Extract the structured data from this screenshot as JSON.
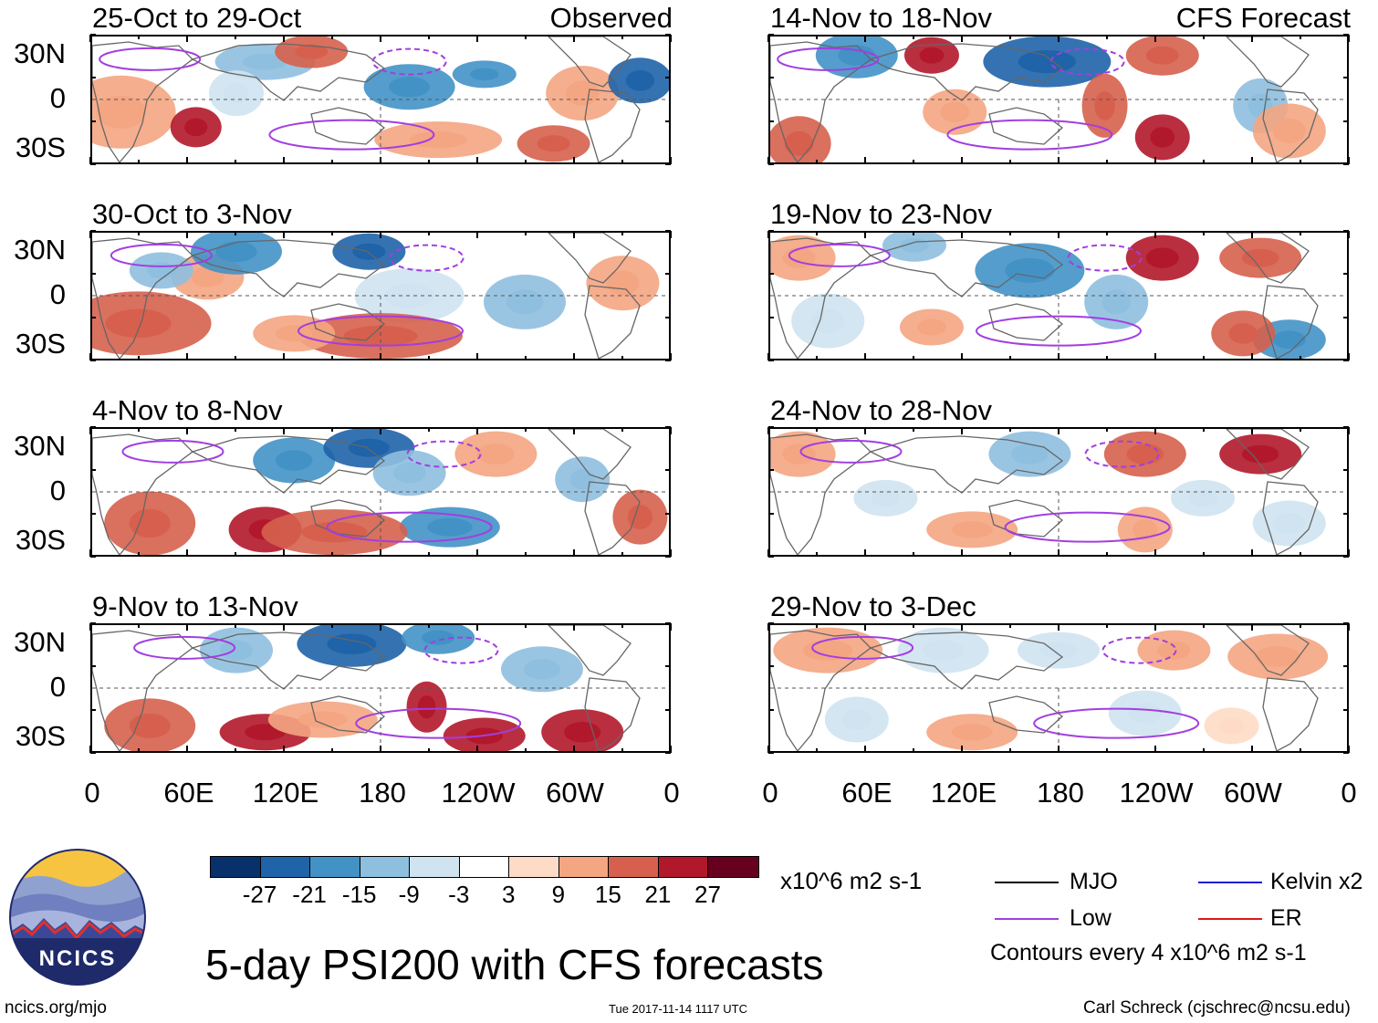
{
  "title": "5-day PSI200 with CFS forecasts",
  "observed_label": "Observed",
  "forecast_label": "CFS Forecast",
  "observed_periods": [
    "25-Oct to 29-Oct",
    "30-Oct to 3-Nov",
    "4-Nov to 8-Nov",
    "9-Nov to 13-Nov"
  ],
  "forecast_periods": [
    "14-Nov to 18-Nov",
    "19-Nov to 23-Nov",
    "24-Nov to 28-Nov",
    "29-Nov to 3-Dec"
  ],
  "lat_labels": [
    "30N",
    "0",
    "30S"
  ],
  "lon_labels": [
    "0",
    "60E",
    "120E",
    "180",
    "120W",
    "60W",
    "0"
  ],
  "colorbar": {
    "values": [
      -27,
      -21,
      -15,
      -9,
      -3,
      3,
      9,
      15,
      21,
      27
    ],
    "labels": [
      "-27",
      "-21",
      "-15",
      "-9",
      "-3",
      "3",
      "9",
      "15",
      "21",
      "27"
    ],
    "colors": [
      "#08306b",
      "#1f63a8",
      "#4292c6",
      "#8fbfdf",
      "#cfe3f0",
      "#ffffff",
      "#fddbc7",
      "#f4a582",
      "#d6604d",
      "#b2182b",
      "#67001f"
    ],
    "units": "x10^6 m2 s-1"
  },
  "legend": {
    "items": [
      {
        "label": "MJO",
        "color": "#000000"
      },
      {
        "label": "Kelvin x2",
        "color": "#1a1adb"
      },
      {
        "label": "Low",
        "color": "#a23ee0"
      },
      {
        "label": "ER",
        "color": "#e01818"
      }
    ],
    "contour_note": "Contours every 4 x10^6 m2 s-1"
  },
  "logo_text": "NCICS",
  "footer": {
    "website": "ncics.org/mjo",
    "timestamp": "Tue 2017-11-14 1117 UTC",
    "author": "Carl Schreck (cjschrec@ncsu.edu)"
  }
}
